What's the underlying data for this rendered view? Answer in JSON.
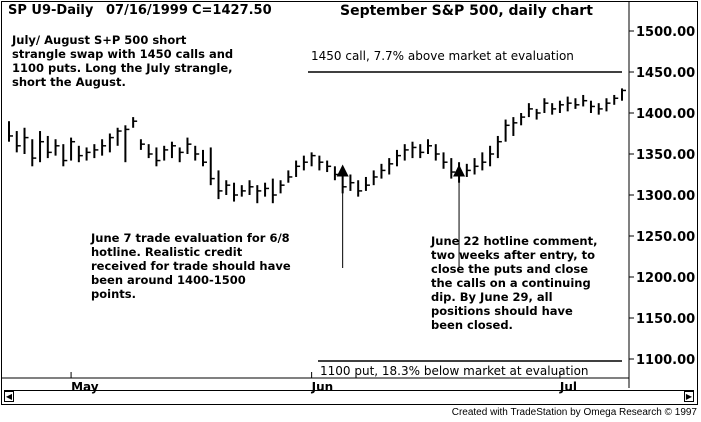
{
  "header": {
    "symbol": "SP U9-Daily",
    "date": "07/16/1999",
    "close": "C=1427.50",
    "title": "September S&P 500, daily chart"
  },
  "notes": {
    "strategy": "July/ August S+P 500 short\nstrangle swap with 1450 calls and\n1100 puts. Long the July strangle,\nshort the August.",
    "june7": "June 7 trade evaluation for 6/8\nhotline. Realistic credit\nreceived for trade should have\nbeen around 1400-1500\npoints.",
    "june22": "June 22 hotline comment,\ntwo weeks after entry, to\nclose the puts and close\nthe calls on a continuing\ndip. By June 29, all\npositions should have\nbeen closed."
  },
  "lines": {
    "call_label": "1450 call, 7.7% above market at evaluation",
    "put_label": "1100 put, 18.3% below market at evaluation"
  },
  "credit": "Created with TradeStation by Omega Research © 1997",
  "chart_data": {
    "type": "ohlc",
    "title": "September S&P 500, daily chart",
    "ylim": [
      1080,
      1520
    ],
    "y_ticks": [
      "1500.00",
      "1450.00",
      "1400.00",
      "1350.00",
      "1300.00",
      "1250.00",
      "1200.00",
      "1150.00",
      "1100.00"
    ],
    "y_tick_values": [
      1500,
      1450,
      1400,
      1350,
      1300,
      1250,
      1200,
      1150,
      1100
    ],
    "x_tick_labels": [
      {
        "label": "May",
        "bar": 8
      },
      {
        "label": "Jun",
        "bar": 39
      },
      {
        "label": "Jul",
        "bar": 71
      }
    ],
    "horizontal_lines": [
      {
        "name": "1450 call",
        "value": 1450
      },
      {
        "name": "1100 put",
        "value": 1100
      }
    ],
    "markers": [
      {
        "name": "June 7 evaluation",
        "bar": 43,
        "value": 1325
      },
      {
        "name": "June 22 comment",
        "bar": 58,
        "value": 1325
      }
    ],
    "bars": [
      {
        "high": 1390,
        "low": 1365,
        "close": 1372
      },
      {
        "high": 1378,
        "low": 1352,
        "close": 1360
      },
      {
        "high": 1382,
        "low": 1350,
        "close": 1370
      },
      {
        "high": 1368,
        "low": 1335,
        "close": 1345
      },
      {
        "high": 1378,
        "low": 1340,
        "close": 1365
      },
      {
        "high": 1372,
        "low": 1345,
        "close": 1352
      },
      {
        "high": 1368,
        "low": 1348,
        "close": 1360
      },
      {
        "high": 1362,
        "low": 1335,
        "close": 1342
      },
      {
        "high": 1370,
        "low": 1342,
        "close": 1365
      },
      {
        "high": 1360,
        "low": 1340,
        "close": 1348
      },
      {
        "high": 1358,
        "low": 1342,
        "close": 1352
      },
      {
        "high": 1362,
        "low": 1345,
        "close": 1355
      },
      {
        "high": 1368,
        "low": 1348,
        "close": 1360
      },
      {
        "high": 1375,
        "low": 1352,
        "close": 1370
      },
      {
        "high": 1382,
        "low": 1360,
        "close": 1378
      },
      {
        "high": 1385,
        "low": 1340,
        "close": 1380
      },
      {
        "high": 1395,
        "low": 1382,
        "close": 1390
      },
      {
        "high": 1368,
        "low": 1355,
        "close": 1362
      },
      {
        "high": 1362,
        "low": 1345,
        "close": 1350
      },
      {
        "high": 1358,
        "low": 1335,
        "close": 1342
      },
      {
        "high": 1360,
        "low": 1342,
        "close": 1355
      },
      {
        "high": 1365,
        "low": 1345,
        "close": 1360
      },
      {
        "high": 1358,
        "low": 1340,
        "close": 1352
      },
      {
        "high": 1370,
        "low": 1350,
        "close": 1362
      },
      {
        "high": 1360,
        "low": 1342,
        "close": 1350
      },
      {
        "high": 1355,
        "low": 1335,
        "close": 1340
      },
      {
        "high": 1358,
        "low": 1312,
        "close": 1320
      },
      {
        "high": 1330,
        "low": 1295,
        "close": 1305
      },
      {
        "high": 1318,
        "low": 1300,
        "close": 1312
      },
      {
        "high": 1315,
        "low": 1292,
        "close": 1300
      },
      {
        "high": 1312,
        "low": 1298,
        "close": 1305
      },
      {
        "high": 1318,
        "low": 1300,
        "close": 1310
      },
      {
        "high": 1312,
        "low": 1290,
        "close": 1305
      },
      {
        "high": 1315,
        "low": 1298,
        "close": 1308
      },
      {
        "high": 1320,
        "low": 1290,
        "close": 1300
      },
      {
        "high": 1318,
        "low": 1302,
        "close": 1312
      },
      {
        "high": 1330,
        "low": 1315,
        "close": 1322
      },
      {
        "high": 1342,
        "low": 1322,
        "close": 1335
      },
      {
        "high": 1348,
        "low": 1330,
        "close": 1340
      },
      {
        "high": 1352,
        "low": 1335,
        "close": 1348
      },
      {
        "high": 1348,
        "low": 1330,
        "close": 1340
      },
      {
        "high": 1342,
        "low": 1328,
        "close": 1335
      },
      {
        "high": 1335,
        "low": 1318,
        "close": 1325
      },
      {
        "high": 1328,
        "low": 1302,
        "close": 1310
      },
      {
        "high": 1325,
        "low": 1305,
        "close": 1315
      },
      {
        "high": 1318,
        "low": 1298,
        "close": 1305
      },
      {
        "high": 1322,
        "low": 1305,
        "close": 1312
      },
      {
        "high": 1330,
        "low": 1312,
        "close": 1322
      },
      {
        "high": 1338,
        "low": 1320,
        "close": 1330
      },
      {
        "high": 1345,
        "low": 1325,
        "close": 1338
      },
      {
        "high": 1355,
        "low": 1335,
        "close": 1348
      },
      {
        "high": 1362,
        "low": 1342,
        "close": 1355
      },
      {
        "high": 1365,
        "low": 1345,
        "close": 1358
      },
      {
        "high": 1362,
        "low": 1345,
        "close": 1352
      },
      {
        "high": 1368,
        "low": 1350,
        "close": 1360
      },
      {
        "high": 1362,
        "low": 1342,
        "close": 1350
      },
      {
        "high": 1352,
        "low": 1332,
        "close": 1340
      },
      {
        "high": 1345,
        "low": 1320,
        "close": 1328
      },
      {
        "high": 1340,
        "low": 1315,
        "close": 1325
      },
      {
        "high": 1338,
        "low": 1322,
        "close": 1330
      },
      {
        "high": 1345,
        "low": 1325,
        "close": 1335
      },
      {
        "high": 1352,
        "low": 1330,
        "close": 1340
      },
      {
        "high": 1360,
        "low": 1335,
        "close": 1350
      },
      {
        "high": 1372,
        "low": 1345,
        "close": 1365
      },
      {
        "high": 1392,
        "low": 1365,
        "close": 1385
      },
      {
        "high": 1395,
        "low": 1372,
        "close": 1388
      },
      {
        "high": 1400,
        "low": 1385,
        "close": 1395
      },
      {
        "high": 1412,
        "low": 1395,
        "close": 1405
      },
      {
        "high": 1405,
        "low": 1392,
        "close": 1400
      },
      {
        "high": 1418,
        "low": 1400,
        "close": 1412
      },
      {
        "high": 1412,
        "low": 1398,
        "close": 1405
      },
      {
        "high": 1415,
        "low": 1400,
        "close": 1410
      },
      {
        "high": 1420,
        "low": 1402,
        "close": 1412
      },
      {
        "high": 1418,
        "low": 1405,
        "close": 1410
      },
      {
        "high": 1422,
        "low": 1408,
        "close": 1415
      },
      {
        "high": 1415,
        "low": 1400,
        "close": 1408
      },
      {
        "high": 1412,
        "low": 1398,
        "close": 1405
      },
      {
        "high": 1418,
        "low": 1402,
        "close": 1412
      },
      {
        "high": 1422,
        "low": 1410,
        "close": 1418
      },
      {
        "high": 1430,
        "low": 1415,
        "close": 1427.5
      }
    ]
  }
}
